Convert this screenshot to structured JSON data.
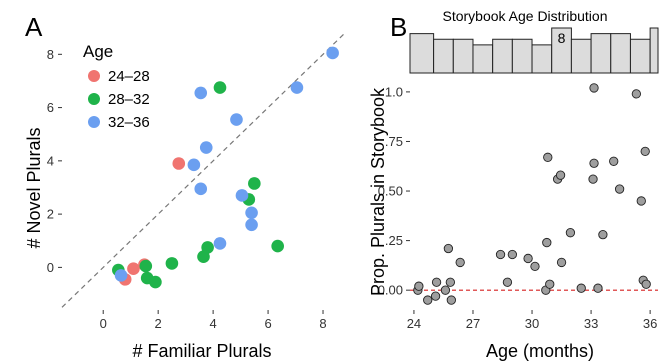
{
  "chart_data": [
    {
      "type": "scatter",
      "panel_label": "A",
      "xlabel": "# Familiar Plurals",
      "ylabel": "# Novel Plurals",
      "xlim": [
        -1.5,
        8.8
      ],
      "ylim": [
        -1.6,
        8.8
      ],
      "xticks": [
        0,
        2,
        4,
        6,
        8
      ],
      "yticks": [
        0,
        2,
        4,
        6,
        8
      ],
      "grid": false,
      "reference_line": "y = x (dashed)",
      "legend": {
        "title": "Age",
        "placement": "top-left",
        "entries": [
          {
            "label": "24–28",
            "color": "#f07470"
          },
          {
            "label": "28–32",
            "color": "#1fb34a"
          },
          {
            "label": "32–36",
            "color": "#6b9ff0"
          }
        ]
      },
      "series": [
        {
          "name": "24–28",
          "color": "#f07470",
          "points": [
            [
              0.8,
              -0.45
            ],
            [
              1.1,
              -0.05
            ],
            [
              1.5,
              0.1
            ],
            [
              2.75,
              3.9
            ]
          ]
        },
        {
          "name": "28–32",
          "color": "#1fb34a",
          "points": [
            [
              0.55,
              -0.1
            ],
            [
              1.55,
              0.05
            ],
            [
              1.6,
              -0.4
            ],
            [
              1.9,
              -0.55
            ],
            [
              2.5,
              0.15
            ],
            [
              3.65,
              0.4
            ],
            [
              3.8,
              0.75
            ],
            [
              4.25,
              6.75
            ],
            [
              5.3,
              2.55
            ],
            [
              5.5,
              3.15
            ],
            [
              6.35,
              0.8
            ]
          ]
        },
        {
          "name": "32–36",
          "color": "#6b9ff0",
          "points": [
            [
              0.65,
              -0.3
            ],
            [
              3.3,
              3.85
            ],
            [
              3.55,
              2.95
            ],
            [
              3.55,
              6.55
            ],
            [
              3.75,
              4.5
            ],
            [
              4.25,
              0.9
            ],
            [
              4.85,
              5.55
            ],
            [
              5.05,
              2.7
            ],
            [
              5.4,
              2.05
            ],
            [
              5.4,
              1.6
            ],
            [
              7.05,
              6.75
            ],
            [
              8.35,
              8.05
            ]
          ]
        }
      ]
    },
    {
      "type": "scatter",
      "panel_label": "B",
      "xlabel": "Age (months)",
      "ylabel": "Prop. Plurals in Storybook",
      "xlim": [
        23.8,
        36.4
      ],
      "ylim": [
        -0.1,
        1.06
      ],
      "xticks": [
        24,
        27,
        30,
        33,
        36
      ],
      "yticks": [
        0,
        0.25,
        0.5,
        0.75,
        1.0
      ],
      "ytick_labels": [
        "0.00",
        ".25",
        "0.50",
        ".75",
        "1.0"
      ],
      "grid": false,
      "reference_line": "y = 0 (dashed red)",
      "point_color": "#9e9e9e",
      "points": [
        [
          24.2,
          0.0
        ],
        [
          24.25,
          0.02
        ],
        [
          24.7,
          -0.05
        ],
        [
          25.1,
          -0.03
        ],
        [
          25.15,
          0.04
        ],
        [
          25.6,
          0.0
        ],
        [
          25.75,
          0.21
        ],
        [
          25.85,
          0.04
        ],
        [
          25.9,
          -0.05
        ],
        [
          26.35,
          0.14
        ],
        [
          28.4,
          0.18
        ],
        [
          28.75,
          0.04
        ],
        [
          29.0,
          0.18
        ],
        [
          29.8,
          0.16
        ],
        [
          30.15,
          0.12
        ],
        [
          30.7,
          0.0
        ],
        [
          30.75,
          0.24
        ],
        [
          30.8,
          0.67
        ],
        [
          30.9,
          0.03
        ],
        [
          31.3,
          0.56
        ],
        [
          31.45,
          0.58
        ],
        [
          31.5,
          0.14
        ],
        [
          31.95,
          0.29
        ],
        [
          32.5,
          0.01
        ],
        [
          33.1,
          0.56
        ],
        [
          33.15,
          0.64
        ],
        [
          33.15,
          1.02
        ],
        [
          33.35,
          0.01
        ],
        [
          33.6,
          0.28
        ],
        [
          34.15,
          0.65
        ],
        [
          34.45,
          0.51
        ],
        [
          35.3,
          0.99
        ],
        [
          35.55,
          0.45
        ],
        [
          35.65,
          0.05
        ],
        [
          35.75,
          0.7
        ],
        [
          35.8,
          0.03
        ]
      ],
      "inset_histogram": {
        "title": "Storybook Age Distribution",
        "bins": [
          {
            "x0": 24.0,
            "x1": 25.0,
            "count": 7
          },
          {
            "x0": 25.0,
            "x1": 26.0,
            "count": 6
          },
          {
            "x0": 26.0,
            "x1": 27.0,
            "count": 6
          },
          {
            "x0": 27.0,
            "x1": 28.0,
            "count": 5
          },
          {
            "x0": 28.0,
            "x1": 29.0,
            "count": 6
          },
          {
            "x0": 29.0,
            "x1": 30.0,
            "count": 6
          },
          {
            "x0": 30.0,
            "x1": 31.0,
            "count": 5
          },
          {
            "x0": 31.0,
            "x1": 32.0,
            "count": 8
          },
          {
            "x0": 32.0,
            "x1": 33.0,
            "count": 6
          },
          {
            "x0": 33.0,
            "x1": 34.0,
            "count": 7
          },
          {
            "x0": 34.0,
            "x1": 35.0,
            "count": 7
          },
          {
            "x0": 35.0,
            "x1": 36.0,
            "count": 6
          },
          {
            "x0": 36.0,
            "x1": 36.4,
            "count": 8
          }
        ],
        "labeled_value": "8",
        "labeled_bin_index": 7,
        "ymax": 8
      }
    }
  ]
}
